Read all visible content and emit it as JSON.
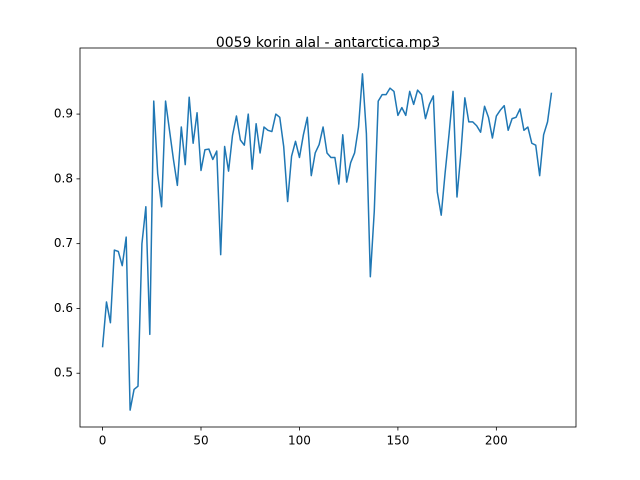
{
  "chart_data": {
    "type": "line",
    "title": "0059 korin alal - antarctica.mp3",
    "x": [
      0,
      2,
      4,
      6,
      8,
      10,
      12,
      14,
      16,
      18,
      20,
      22,
      24,
      26,
      28,
      30,
      32,
      34,
      36,
      38,
      40,
      42,
      44,
      46,
      48,
      50,
      52,
      54,
      56,
      58,
      60,
      62,
      64,
      66,
      68,
      70,
      72,
      74,
      76,
      78,
      80,
      82,
      84,
      86,
      88,
      90,
      92,
      94,
      96,
      98,
      100,
      102,
      104,
      106,
      108,
      110,
      112,
      114,
      116,
      118,
      120,
      122,
      124,
      126,
      128,
      130,
      132,
      134,
      136,
      138,
      140,
      142,
      144,
      146,
      148,
      150,
      152,
      154,
      156,
      158,
      160,
      162,
      164,
      166,
      168,
      170,
      172,
      174,
      176,
      178,
      180,
      182,
      184,
      186,
      188,
      190,
      192,
      194,
      196,
      198,
      200,
      202,
      204,
      206,
      208,
      210,
      212,
      214,
      216,
      218,
      220,
      222,
      224,
      226,
      228
    ],
    "series": [
      {
        "color": "#1f77b4",
        "values": [
          0.54,
          0.61,
          0.578,
          0.69,
          0.688,
          0.666,
          0.71,
          0.443,
          0.475,
          0.48,
          0.7,
          0.757,
          0.56,
          0.92,
          0.808,
          0.757,
          0.92,
          0.875,
          0.83,
          0.79,
          0.88,
          0.822,
          0.926,
          0.855,
          0.902,
          0.813,
          0.845,
          0.846,
          0.83,
          0.843,
          0.683,
          0.85,
          0.812,
          0.867,
          0.897,
          0.86,
          0.852,
          0.9,
          0.815,
          0.885,
          0.84,
          0.88,
          0.875,
          0.873,
          0.9,
          0.895,
          0.85,
          0.765,
          0.835,
          0.858,
          0.833,
          0.868,
          0.895,
          0.805,
          0.84,
          0.853,
          0.88,
          0.84,
          0.833,
          0.833,
          0.792,
          0.868,
          0.795,
          0.825,
          0.84,
          0.88,
          0.962,
          0.87,
          0.649,
          0.75,
          0.92,
          0.93,
          0.93,
          0.94,
          0.935,
          0.898,
          0.91,
          0.898,
          0.935,
          0.915,
          0.937,
          0.93,
          0.893,
          0.915,
          0.928,
          0.78,
          0.744,
          0.81,
          0.87,
          0.935,
          0.772,
          0.84,
          0.925,
          0.888,
          0.888,
          0.882,
          0.872,
          0.912,
          0.895,
          0.863,
          0.897,
          0.906,
          0.913,
          0.875,
          0.893,
          0.895,
          0.908,
          0.875,
          0.88,
          0.855,
          0.852,
          0.805,
          0.868,
          0.888,
          0.933
        ]
      }
    ],
    "xlim": [
      -11.45,
      240.45
    ],
    "xticks": [
      0,
      50,
      100,
      150,
      200
    ],
    "ylim": [
      0.417,
      1.002
    ],
    "yticks": [
      0.5,
      0.6,
      0.7,
      0.8,
      0.9
    ],
    "grid": false
  }
}
